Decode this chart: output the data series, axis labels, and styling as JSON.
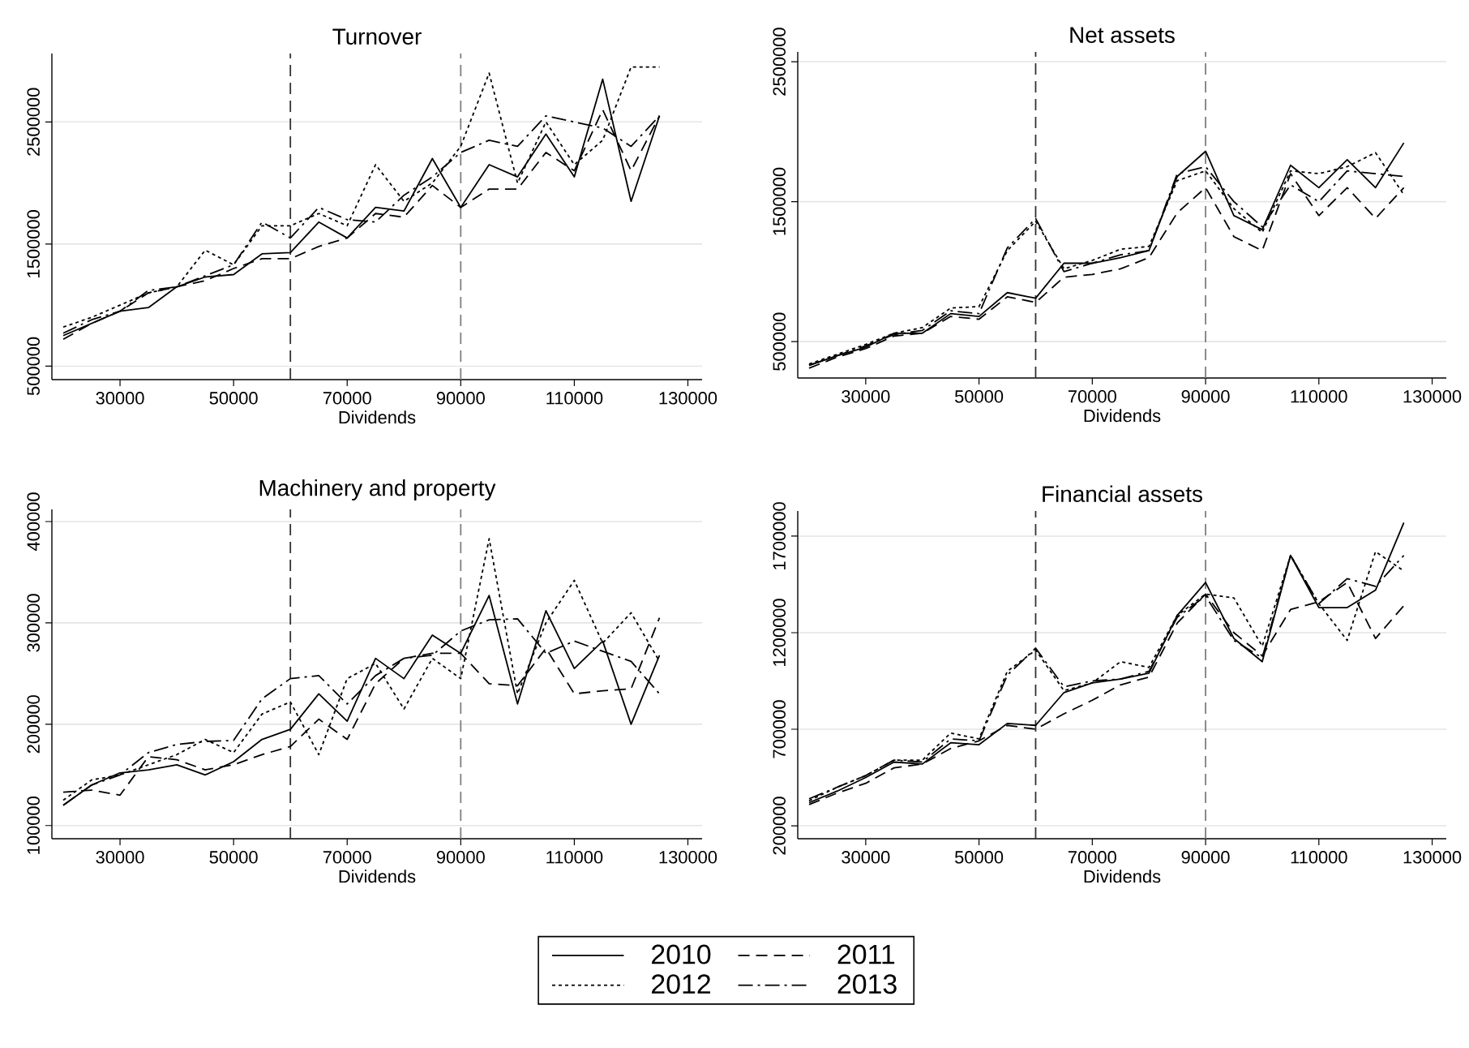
{
  "chart_data": [
    {
      "type": "line",
      "title": "Turnover",
      "xlabel": "Dividends",
      "x": [
        20000,
        25000,
        30000,
        35000,
        40000,
        45000,
        50000,
        55000,
        60000,
        65000,
        70000,
        75000,
        80000,
        85000,
        90000,
        95000,
        100000,
        105000,
        110000,
        115000,
        120000,
        125000
      ],
      "xlim": [
        18000,
        132500
      ],
      "ylim": [
        390000,
        3060000
      ],
      "xticks": [
        30000,
        50000,
        70000,
        90000,
        110000,
        130000
      ],
      "yticks": [
        500000,
        1500000,
        2500000
      ],
      "grid": "y",
      "legend": "bottom",
      "ref_lines": [
        {
          "axis": "x",
          "value": 60000,
          "color": "#333333",
          "line_style": "dashed"
        },
        {
          "axis": "x",
          "value": 90000,
          "color": "#7f7f7f",
          "line_style": "dashed"
        }
      ],
      "series": [
        {
          "name": "2010",
          "color": "#000000",
          "line_style": "solid",
          "values": [
            750000,
            850000,
            950000,
            980000,
            1150000,
            1230000,
            1250000,
            1420000,
            1430000,
            1680000,
            1550000,
            1800000,
            1770000,
            2200000,
            1800000,
            2150000,
            2050000,
            2400000,
            2050000,
            2850000,
            1850000,
            2550000
          ]
        },
        {
          "name": "2011",
          "color": "#000000",
          "line_style": "dashed",
          "values": [
            720000,
            850000,
            950000,
            1100000,
            1150000,
            1200000,
            1300000,
            1380000,
            1380000,
            1480000,
            1550000,
            1750000,
            1720000,
            1980000,
            1800000,
            1950000,
            1950000,
            2250000,
            2100000,
            2600000,
            2100000,
            2550000
          ]
        },
        {
          "name": "2012",
          "color": "#000000",
          "line_style": "dotted",
          "values": [
            820000,
            900000,
            1000000,
            1100000,
            1150000,
            1450000,
            1330000,
            1650000,
            1650000,
            1750000,
            1650000,
            2150000,
            1850000,
            2000000,
            2300000,
            2900000,
            2000000,
            2500000,
            2150000,
            2350000,
            2950000,
            2950000
          ]
        },
        {
          "name": "2013",
          "color": "#000000",
          "line_style": "dashdot",
          "values": [
            770000,
            880000,
            950000,
            1120000,
            1150000,
            1240000,
            1330000,
            1680000,
            1550000,
            1800000,
            1700000,
            1680000,
            1900000,
            2050000,
            2250000,
            2350000,
            2300000,
            2550000,
            2500000,
            2450000,
            2300000,
            2550000
          ]
        }
      ]
    },
    {
      "type": "line",
      "title": "Net assets",
      "xlabel": "Dividends",
      "x": [
        20000,
        25000,
        30000,
        35000,
        40000,
        45000,
        50000,
        55000,
        60000,
        65000,
        70000,
        75000,
        80000,
        85000,
        90000,
        95000,
        100000,
        105000,
        110000,
        115000,
        120000,
        125000
      ],
      "xlim": [
        18000,
        132500
      ],
      "ylim": [
        240000,
        2570000
      ],
      "xticks": [
        30000,
        50000,
        70000,
        90000,
        110000,
        130000
      ],
      "yticks": [
        500000,
        1500000,
        2500000
      ],
      "grid": "y",
      "ref_lines": [
        {
          "axis": "x",
          "value": 60000,
          "color": "#333333",
          "line_style": "dashed"
        },
        {
          "axis": "x",
          "value": 90000,
          "color": "#7f7f7f",
          "line_style": "dashed"
        }
      ],
      "series": [
        {
          "color": "#000000",
          "line_style": "solid",
          "values": [
            330000,
            400000,
            460000,
            560000,
            560000,
            700000,
            680000,
            850000,
            810000,
            1060000,
            1060000,
            1100000,
            1150000,
            1680000,
            1860000,
            1400000,
            1300000,
            1760000,
            1600000,
            1800000,
            1600000,
            1920000
          ]
        },
        {
          "color": "#000000",
          "line_style": "dashed",
          "values": [
            310000,
            390000,
            450000,
            540000,
            560000,
            680000,
            660000,
            820000,
            780000,
            960000,
            980000,
            1020000,
            1100000,
            1420000,
            1600000,
            1250000,
            1150000,
            1700000,
            1400000,
            1600000,
            1380000,
            1600000
          ]
        },
        {
          "color": "#000000",
          "line_style": "dotted",
          "values": [
            340000,
            410000,
            480000,
            560000,
            600000,
            740000,
            750000,
            1150000,
            1360000,
            1020000,
            1080000,
            1160000,
            1180000,
            1650000,
            1720000,
            1450000,
            1280000,
            1720000,
            1700000,
            1750000,
            1850000,
            1550000
          ]
        },
        {
          "color": "#000000",
          "line_style": "dashdot",
          "values": [
            330000,
            400000,
            470000,
            550000,
            580000,
            720000,
            700000,
            1170000,
            1380000,
            1000000,
            1060000,
            1120000,
            1150000,
            1700000,
            1750000,
            1500000,
            1320000,
            1620000,
            1500000,
            1720000,
            1700000,
            1680000
          ]
        }
      ]
    },
    {
      "type": "line",
      "title": "Machinery and property",
      "xlabel": "Dividends",
      "x": [
        20000,
        25000,
        30000,
        35000,
        40000,
        45000,
        50000,
        55000,
        60000,
        65000,
        70000,
        75000,
        80000,
        85000,
        90000,
        95000,
        100000,
        105000,
        110000,
        115000,
        120000,
        125000
      ],
      "xlim": [
        18000,
        132500
      ],
      "ylim": [
        87000,
        412000
      ],
      "xticks": [
        30000,
        50000,
        70000,
        90000,
        110000,
        130000
      ],
      "yticks": [
        100000,
        200000,
        300000,
        400000
      ],
      "grid": "y",
      "ref_lines": [
        {
          "axis": "x",
          "value": 60000,
          "color": "#333333",
          "line_style": "dashed"
        },
        {
          "axis": "x",
          "value": 90000,
          "color": "#7f7f7f",
          "line_style": "dashed"
        }
      ],
      "series": [
        {
          "color": "#000000",
          "line_style": "solid",
          "values": [
            120000,
            140000,
            152000,
            155000,
            160000,
            150000,
            163000,
            185000,
            195000,
            230000,
            203000,
            265000,
            245000,
            288000,
            270000,
            327000,
            220000,
            312000,
            255000,
            282000,
            200000,
            268000
          ]
        },
        {
          "color": "#000000",
          "line_style": "dashed",
          "values": [
            133000,
            135000,
            130000,
            168000,
            165000,
            155000,
            160000,
            170000,
            178000,
            205000,
            185000,
            240000,
            265000,
            270000,
            270000,
            240000,
            238000,
            275000,
            230000,
            233000,
            235000,
            305000
          ]
        },
        {
          "color": "#000000",
          "line_style": "dotted",
          "values": [
            125000,
            145000,
            150000,
            160000,
            170000,
            185000,
            172000,
            210000,
            222000,
            170000,
            245000,
            260000,
            215000,
            265000,
            245000,
            383000,
            230000,
            300000,
            342000,
            280000,
            310000,
            262000
          ]
        },
        {
          "color": "#000000",
          "line_style": "dashdot",
          "values": [
            120000,
            140000,
            150000,
            172000,
            180000,
            183000,
            184000,
            225000,
            245000,
            248000,
            220000,
            248000,
            265000,
            268000,
            292000,
            303000,
            304000,
            270000,
            282000,
            272000,
            262000,
            230000
          ]
        }
      ]
    },
    {
      "type": "line",
      "title": "Financial assets",
      "xlabel": "Dividends",
      "x": [
        20000,
        25000,
        30000,
        35000,
        40000,
        45000,
        50000,
        55000,
        60000,
        65000,
        70000,
        75000,
        80000,
        85000,
        90000,
        95000,
        100000,
        105000,
        110000,
        115000,
        120000,
        125000
      ],
      "xlim": [
        18000,
        132500
      ],
      "ylim": [
        133000,
        1830000
      ],
      "xticks": [
        30000,
        50000,
        70000,
        90000,
        110000,
        130000
      ],
      "yticks": [
        200000,
        700000,
        1200000,
        1700000
      ],
      "grid": "y",
      "ref_lines": [
        {
          "axis": "x",
          "value": 60000,
          "color": "#333333",
          "line_style": "dashed"
        },
        {
          "axis": "x",
          "value": 90000,
          "color": "#7f7f7f",
          "line_style": "dashed"
        }
      ],
      "series": [
        {
          "color": "#000000",
          "line_style": "solid",
          "values": [
            320000,
            380000,
            450000,
            530000,
            520000,
            630000,
            620000,
            730000,
            720000,
            890000,
            940000,
            960000,
            990000,
            1290000,
            1460000,
            1170000,
            1050000,
            1600000,
            1330000,
            1330000,
            1420000,
            1770000
          ]
        },
        {
          "color": "#000000",
          "line_style": "dashed",
          "values": [
            310000,
            370000,
            420000,
            500000,
            520000,
            600000,
            640000,
            720000,
            700000,
            780000,
            850000,
            930000,
            970000,
            1250000,
            1400000,
            1200000,
            1080000,
            1320000,
            1360000,
            1460000,
            1170000,
            1340000
          ]
        },
        {
          "color": "#000000",
          "line_style": "dotted",
          "values": [
            330000,
            400000,
            460000,
            540000,
            540000,
            680000,
            650000,
            1000000,
            1110000,
            900000,
            940000,
            1050000,
            1020000,
            1290000,
            1400000,
            1380000,
            1130000,
            1600000,
            1350000,
            1160000,
            1620000,
            1520000
          ]
        },
        {
          "color": "#000000",
          "line_style": "dashdot",
          "values": [
            340000,
            400000,
            460000,
            540000,
            530000,
            650000,
            640000,
            980000,
            1120000,
            920000,
            950000,
            960000,
            1000000,
            1280000,
            1390000,
            1160000,
            1070000,
            1600000,
            1350000,
            1480000,
            1440000,
            1600000
          ]
        }
      ]
    }
  ]
}
